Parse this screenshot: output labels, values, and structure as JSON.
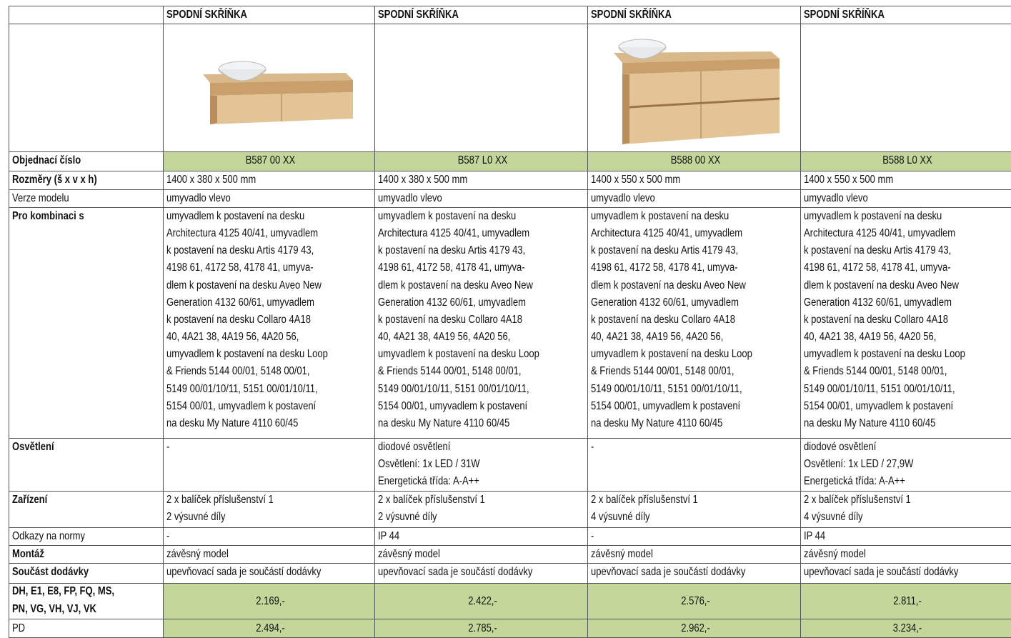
{
  "table": {
    "header": [
      "SPODNÍ SKŘÍŇKA",
      "SPODNÍ SKŘÍŇKA",
      "SPODNÍ SKŘÍŇKA",
      "SPODNÍ SKŘÍŇKA"
    ],
    "rows": [
      {
        "label": "Objednací číslo",
        "cells": [
          [
            "B587 00 XX"
          ],
          [
            "B587 L0 XX"
          ],
          [
            "B588 00 XX"
          ],
          [
            "B588 L0 XX"
          ]
        ]
      },
      {
        "label": "Rozměry (š x v x h)",
        "cells": [
          [
            "1400 x 380 x 500 mm"
          ],
          [
            "1400 x 380 x 500 mm"
          ],
          [
            "1400 x 550 x 500 mm"
          ],
          [
            "1400 x 550 x 500 mm"
          ]
        ]
      },
      {
        "label": "Verze modelu",
        "cells": [
          [
            "umyvadlo vlevo"
          ],
          [
            "umyvadlo vlevo"
          ],
          [
            "umyvadlo vlevo"
          ],
          [
            "umyvadlo vlevo"
          ]
        ]
      },
      {
        "label": "Pro kombinaci s",
        "cells": [
          [
            "umyvadlem k postavení na desku",
            "Architectura 4125 40/41, umyvadlem",
            "k postavení na desku Artis 4179 43,",
            "4198 61, 4172 58, 4178 41, umyva-",
            "dlem k postavení na desku Aveo New",
            "Generation 4132 60/61, umyvadlem",
            "k postavení na desku Collaro 4A18",
            "40, 4A21 38, 4A19 56, 4A20 56,",
            "umyvadlem k postavení na desku Loop",
            "& Friends 5144 00/01, 5148 00/01,",
            "5149 00/01/10/11, 5151 00/01/10/11,",
            "5154 00/01, umyvadlem k postavení",
            "na desku My Nature 4110 60/45"
          ],
          [
            "umyvadlem k postavení na desku",
            "Architectura 4125 40/41, umyvadlem",
            "k postavení na desku Artis 4179 43,",
            "4198 61, 4172 58, 4178 41, umyva-",
            "dlem k postavení na desku Aveo New",
            "Generation 4132 60/61, umyvadlem",
            "k postavení na desku Collaro 4A18",
            "40, 4A21 38, 4A19 56, 4A20 56,",
            "umyvadlem k postavení na desku Loop",
            "& Friends 5144 00/01, 5148 00/01,",
            "5149 00/01/10/11, 5151 00/01/10/11,",
            "5154 00/01, umyvadlem k postavení",
            "na desku My Nature 4110 60/45"
          ],
          [
            "umyvadlem k postavení na desku",
            "Architectura 4125 40/41, umyvadlem",
            "k postavení na desku Artis 4179 43,",
            "4198 61, 4172 58, 4178 41, umyva-",
            "dlem k postavení na desku Aveo New",
            "Generation 4132 60/61, umyvadlem",
            "k postavení na desku Collaro 4A18",
            "40, 4A21 38, 4A19 56, 4A20 56,",
            "umyvadlem k postavení na desku Loop",
            "& Friends 5144 00/01, 5148 00/01,",
            "5149 00/01/10/11, 5151 00/01/10/11,",
            "5154 00/01, umyvadlem k postavení",
            "na desku My Nature 4110 60/45"
          ],
          [
            "umyvadlem k postavení na desku",
            "Architectura 4125 40/41, umyvadlem",
            "k postavení na desku Artis 4179 43,",
            "4198 61, 4172 58, 4178 41, umyva-",
            "dlem k postavení na desku Aveo New",
            "Generation 4132 60/61, umyvadlem",
            "k postavení na desku Collaro 4A18",
            "40, 4A21 38, 4A19 56, 4A20 56,",
            "umyvadlem k postavení na desku Loop",
            "& Friends 5144 00/01, 5148 00/01,",
            "5149 00/01/10/11, 5151 00/01/10/11,",
            "5154 00/01, umyvadlem k postavení",
            "na desku My Nature 4110 60/45"
          ]
        ]
      },
      {
        "label": "Osvětlení",
        "cells": [
          [
            "-"
          ],
          [
            "diodové osvětlení",
            "Osvětlení: 1x LED / 31W",
            "Energetická třída: A-A++"
          ],
          [
            "-"
          ],
          [
            "diodové osvětlení",
            "Osvětlení: 1x LED / 27,9W",
            "Energetická třída: A-A++"
          ]
        ]
      },
      {
        "label": "Zařízení",
        "cells": [
          [
            "2 x balíček příslušenství 1",
            "2 výsuvné díly"
          ],
          [
            "2 x balíček příslušenství 1",
            "2 výsuvné díly"
          ],
          [
            "2 x balíček příslušenství 1",
            "4 výsuvné díly"
          ],
          [
            "2 x balíček příslušenství 1",
            "4 výsuvné díly"
          ]
        ]
      },
      {
        "label": "Odkazy na normy",
        "cells": [
          [
            "-"
          ],
          [
            "IP 44"
          ],
          [
            "-"
          ],
          [
            "IP 44"
          ]
        ]
      },
      {
        "label": "Montáž",
        "cells": [
          [
            "závěsný model"
          ],
          [
            "závěsný model"
          ],
          [
            "závěsný model"
          ],
          [
            "závěsný model"
          ]
        ]
      },
      {
        "label": "Součást dodávky",
        "cells": [
          [
            "upevňovací sada je součástí dodávky"
          ],
          [
            "upevňovací sada je součástí dodávky"
          ],
          [
            "upevňovací sada je součástí dodávky"
          ],
          [
            "upevňovací sada je součástí dodávky"
          ]
        ]
      },
      {
        "label": [
          "DH, E1, E8, FP, FQ, MS,",
          "PN, VG, VH, VJ, VK"
        ],
        "cells": [
          [
            "2.169,-"
          ],
          [
            "2.422,-"
          ],
          [
            "2.576,-"
          ],
          [
            "2.811,-"
          ]
        ]
      },
      {
        "label": "PD",
        "cells": [
          [
            "2.494,-"
          ],
          [
            "2.785,-"
          ],
          [
            "2.962,-"
          ],
          [
            "3.234,-"
          ]
        ]
      }
    ]
  }
}
